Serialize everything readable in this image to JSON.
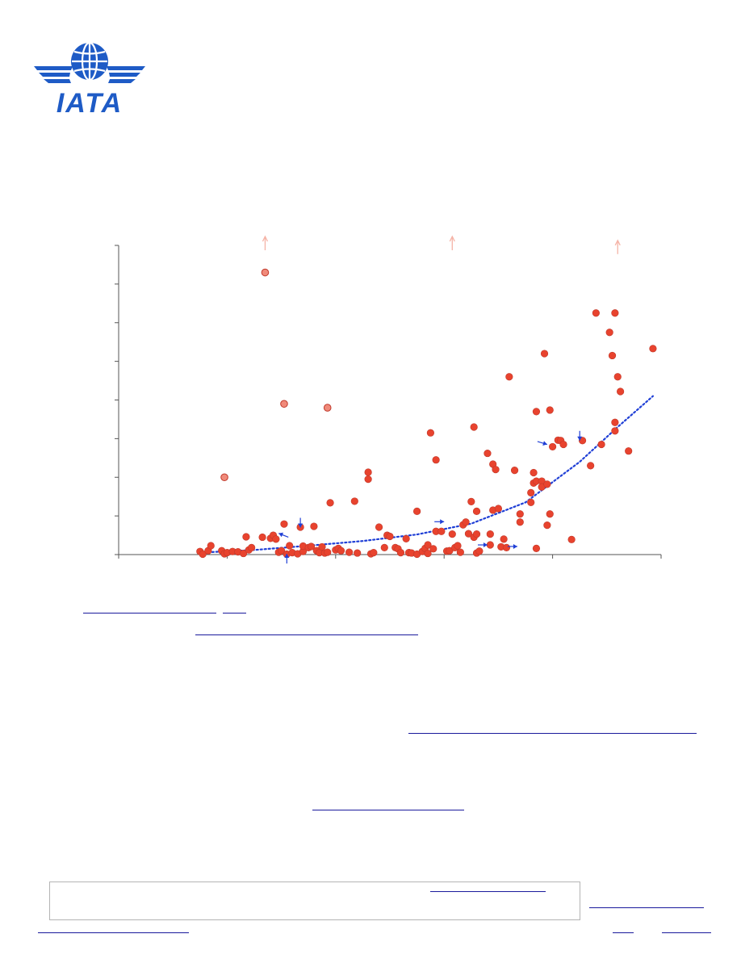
{
  "logo": {
    "text": "IATA",
    "color": "#1e5bc6"
  },
  "colors": {
    "point": "#e8432e",
    "point_outline": "#c0392b",
    "outlier": "#f08a7a",
    "arrow_marker": "#f5b3a6",
    "trend": "#1f3fd6",
    "axis": "#555555",
    "link_underline": "#1a1a9c"
  },
  "chart_data": {
    "type": "scatter",
    "title": "",
    "xlabel": "",
    "ylabel": "",
    "xlim": [
      0,
      100
    ],
    "ylim": [
      0,
      80
    ],
    "x_ticks": [
      0,
      20,
      40,
      60,
      80,
      100
    ],
    "y_ticks": [
      0,
      10,
      20,
      30,
      40,
      50,
      60,
      70,
      80
    ],
    "grid": false,
    "legend": "none",
    "series": [
      {
        "role": "points",
        "points": [
          [
            15,
            0.8
          ],
          [
            15.5,
            0.1
          ],
          [
            16.5,
            1.0
          ],
          [
            17,
            2.3
          ],
          [
            19,
            1.0
          ],
          [
            19.5,
            0.2
          ],
          [
            20,
            0.5
          ],
          [
            21,
            0.8
          ],
          [
            22,
            0.7
          ],
          [
            23,
            0.3
          ],
          [
            23.5,
            4.6
          ],
          [
            24,
            1.2
          ],
          [
            24.5,
            1.8
          ],
          [
            26.5,
            4.5
          ],
          [
            28,
            4.2
          ],
          [
            28.5,
            5.0
          ],
          [
            29,
            4.0
          ],
          [
            29.5,
            0.6
          ],
          [
            30,
            1.0
          ],
          [
            30.5,
            7.9
          ],
          [
            31,
            0.1
          ],
          [
            31.5,
            2.3
          ],
          [
            32,
            0.5
          ],
          [
            33,
            0.2
          ],
          [
            33.5,
            7.1
          ],
          [
            34,
            0.8
          ],
          [
            34,
            2.2
          ],
          [
            35,
            1.8
          ],
          [
            35.5,
            2.1
          ],
          [
            36,
            7.3
          ],
          [
            36.5,
            1.0
          ],
          [
            37,
            0.5
          ],
          [
            37.5,
            2.0
          ],
          [
            38,
            0.4
          ],
          [
            38.5,
            0.6
          ],
          [
            39,
            13.4
          ],
          [
            40,
            1.2
          ],
          [
            40.5,
            1.6
          ],
          [
            41,
            1.0
          ],
          [
            42.5,
            0.6
          ],
          [
            43.5,
            13.8
          ],
          [
            44,
            0.4
          ],
          [
            46,
            21.3
          ],
          [
            46,
            19.5
          ],
          [
            46.5,
            0.2
          ],
          [
            47,
            0.5
          ],
          [
            48,
            7.1
          ],
          [
            49,
            1.8
          ],
          [
            49.5,
            5.0
          ],
          [
            50,
            4.7
          ],
          [
            51,
            1.8
          ],
          [
            51.5,
            1.5
          ],
          [
            52,
            0.5
          ],
          [
            53,
            4.1
          ],
          [
            53.5,
            0.5
          ],
          [
            54,
            0.4
          ],
          [
            55,
            0.1
          ],
          [
            55,
            11.2
          ],
          [
            56,
            0.8
          ],
          [
            56.5,
            1.6
          ],
          [
            57,
            2.5
          ],
          [
            57,
            0.3
          ],
          [
            57.5,
            31.5
          ],
          [
            58,
            1.5
          ],
          [
            58.5,
            24.5
          ],
          [
            58.5,
            6.0
          ],
          [
            59.5,
            6.0
          ],
          [
            60.5,
            0.9
          ],
          [
            61,
            1.0
          ],
          [
            61.5,
            5.3
          ],
          [
            62,
            1.8
          ],
          [
            62.5,
            2.3
          ],
          [
            63,
            0.6
          ],
          [
            63.5,
            7.7
          ],
          [
            64,
            8.4
          ],
          [
            64.5,
            5.4
          ],
          [
            65,
            13.7
          ],
          [
            65.5,
            33.0
          ],
          [
            65.5,
            4.5
          ],
          [
            66,
            0.4
          ],
          [
            66,
            11.2
          ],
          [
            66,
            5.3
          ],
          [
            66.5,
            0.9
          ],
          [
            68,
            26.2
          ],
          [
            68.5,
            2.5
          ],
          [
            68.5,
            5.3
          ],
          [
            69,
            11.5
          ],
          [
            69,
            23.4
          ],
          [
            69.5,
            22.0
          ],
          [
            70,
            11.9
          ],
          [
            70.5,
            2.0
          ],
          [
            71,
            4.0
          ],
          [
            71.5,
            1.8
          ],
          [
            72,
            46.0
          ],
          [
            73,
            21.8
          ],
          [
            74,
            10.5
          ],
          [
            74,
            8.4
          ],
          [
            76,
            13.5
          ],
          [
            76,
            16.0
          ],
          [
            76.5,
            18.5
          ],
          [
            76.5,
            21.2
          ],
          [
            77,
            1.6
          ],
          [
            77,
            19.0
          ],
          [
            77,
            37.0
          ],
          [
            78,
            19.0
          ],
          [
            78,
            17.5
          ],
          [
            78.5,
            52.0
          ],
          [
            79,
            7.6
          ],
          [
            79,
            18.2
          ],
          [
            79.5,
            10.5
          ],
          [
            79.5,
            37.4
          ],
          [
            80,
            27.9
          ],
          [
            81,
            29.6
          ],
          [
            81.5,
            29.5
          ],
          [
            82,
            28.5
          ],
          [
            83.5,
            3.9
          ],
          [
            85.5,
            29.5
          ],
          [
            87,
            23.0
          ],
          [
            88,
            62.5
          ],
          [
            89,
            28.5
          ],
          [
            90.5,
            57.5
          ],
          [
            91,
            51.5
          ],
          [
            91.5,
            62.5
          ],
          [
            91.5,
            34.2
          ],
          [
            91.5,
            32.0
          ],
          [
            92,
            46.0
          ],
          [
            92.5,
            42.2
          ],
          [
            94,
            26.8
          ],
          [
            98.5,
            53.3
          ]
        ]
      },
      {
        "role": "outliers",
        "points": [
          [
            19.5,
            20.0
          ],
          [
            27,
            73.0
          ],
          [
            30.5,
            39.0
          ],
          [
            38.5,
            38.0
          ]
        ]
      },
      {
        "role": "off-scale-markers",
        "points": [
          [
            27,
            80
          ],
          [
            61.5,
            80
          ],
          [
            92,
            79
          ]
        ]
      },
      {
        "role": "annotation-arrows",
        "points": [
          [
            29.5,
            5.5
          ],
          [
            33.5,
            7.0
          ],
          [
            31,
            0.2
          ],
          [
            60,
            8.5
          ],
          [
            68,
            2.5
          ],
          [
            73.5,
            2.1
          ],
          [
            79,
            28.5
          ],
          [
            85,
            29.5
          ]
        ]
      },
      {
        "role": "trendline",
        "curve": "exponential",
        "points": [
          [
            15,
            0.5
          ],
          [
            25,
            1.2
          ],
          [
            35,
            2.3
          ],
          [
            45,
            3.5
          ],
          [
            55,
            5.2
          ],
          [
            65,
            8.0
          ],
          [
            75,
            13.5
          ],
          [
            85,
            24.0
          ],
          [
            92,
            33.0
          ],
          [
            98.5,
            41.0
          ]
        ]
      }
    ]
  },
  "links": [
    {
      "id": "link-1a",
      "text": ""
    },
    {
      "id": "link-1b",
      "text": ""
    },
    {
      "id": "link-2",
      "text": ""
    },
    {
      "id": "link-3",
      "text": ""
    },
    {
      "id": "link-4",
      "text": ""
    },
    {
      "id": "link-5",
      "text": ""
    },
    {
      "id": "link-6",
      "text": ""
    },
    {
      "id": "link-7",
      "text": ""
    },
    {
      "id": "link-8",
      "text": ""
    },
    {
      "id": "link-9",
      "text": ""
    }
  ]
}
